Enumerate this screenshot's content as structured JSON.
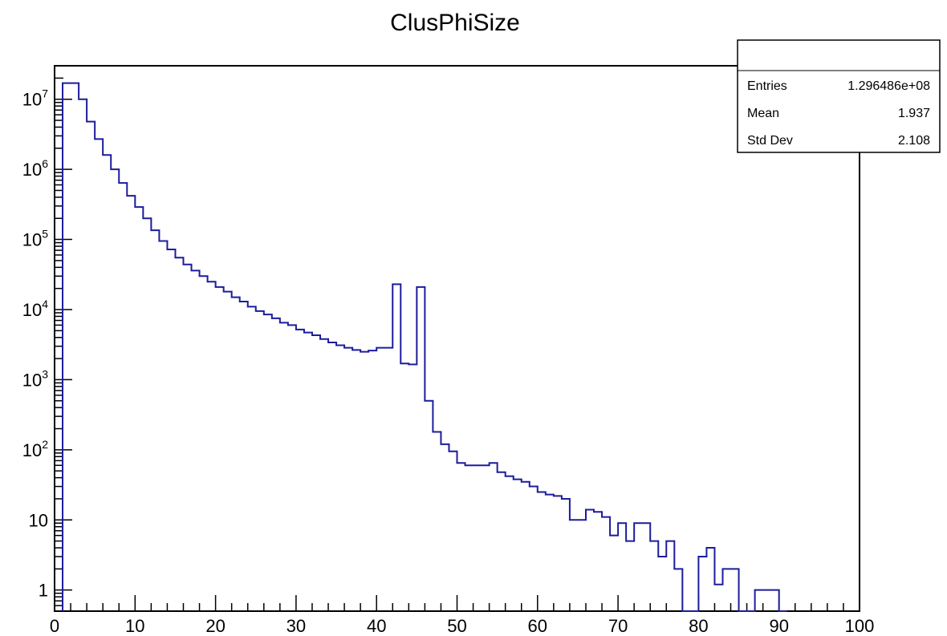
{
  "chart_data": {
    "type": "histogram",
    "title": "ClusPhiSize",
    "xlabel": "",
    "ylabel": "",
    "xlim": [
      0,
      100
    ],
    "ylim": [
      0.5,
      30000000
    ],
    "y_scale": "log",
    "grid": false,
    "line_color": "#1c1c9c",
    "x_tick_labels": [
      "0",
      "10",
      "20",
      "30",
      "40",
      "50",
      "60",
      "70",
      "80",
      "90",
      "100"
    ],
    "y_tick_labels": [
      {
        "value": 1,
        "base": "1",
        "exp": ""
      },
      {
        "value": 10,
        "base": "10",
        "exp": ""
      },
      {
        "value": 100,
        "base": "10",
        "exp": "2"
      },
      {
        "value": 1000,
        "base": "10",
        "exp": "3"
      },
      {
        "value": 10000,
        "base": "10",
        "exp": "4"
      },
      {
        "value": 100000,
        "base": "10",
        "exp": "5"
      },
      {
        "value": 1000000,
        "base": "10",
        "exp": "6"
      },
      {
        "value": 10000000,
        "base": "10",
        "exp": "7"
      }
    ],
    "bin_width": 1,
    "bin_start": 1,
    "bin_values": [
      17000000,
      17000000,
      10000000,
      4800000,
      2700000,
      1600000,
      1000000,
      640000,
      420000,
      290000,
      200000,
      135000,
      95000,
      72000,
      55000,
      44000,
      36000,
      30000,
      25000,
      21000,
      18000,
      15000,
      13000,
      11000,
      9500,
      8500,
      7500,
      6500,
      6000,
      5200,
      4700,
      4300,
      3800,
      3400,
      3100,
      2850,
      2650,
      2500,
      2600,
      2850,
      2850,
      23000,
      1700,
      1650,
      21000,
      500,
      180,
      120,
      95,
      65,
      60,
      60,
      60,
      65,
      48,
      42,
      38,
      35,
      30,
      25,
      23,
      22,
      20,
      10,
      10,
      14,
      13,
      11,
      6,
      9,
      5,
      9,
      9,
      5,
      3,
      5,
      2,
      0,
      0,
      3,
      4,
      1.2,
      2,
      2,
      0,
      0,
      1,
      1,
      1,
      0
    ],
    "stats_box": {
      "rows": [
        {
          "label": "Entries",
          "value": "1.296486e+08"
        },
        {
          "label": "Mean",
          "value": "1.937"
        },
        {
          "label": "Std Dev",
          "value": "2.108"
        }
      ]
    }
  }
}
